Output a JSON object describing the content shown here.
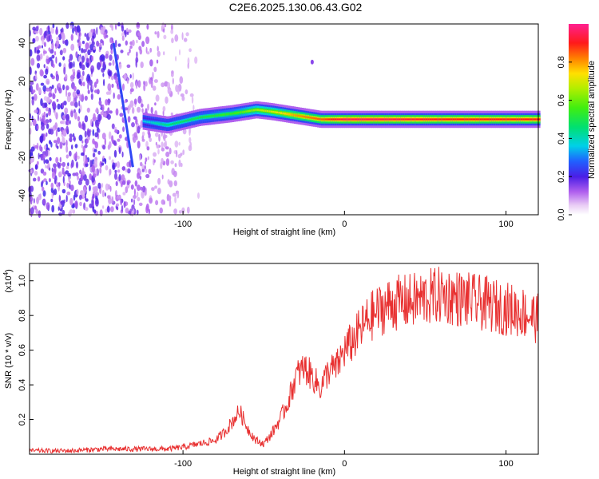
{
  "title": "C2E6.2025.130.06.43.G02",
  "chart_data": [
    {
      "type": "heatmap",
      "xlabel": "Height of straight line (km)",
      "ylabel": "Frequency (Hz)",
      "xlim": [
        -195,
        120
      ],
      "ylim": [
        -50,
        50
      ],
      "xticks": [
        -100,
        0,
        100
      ],
      "yticks": [
        -40,
        -20,
        0,
        20,
        40
      ],
      "colorbar": {
        "label": "Normalized spectral amplitude",
        "range": [
          0,
          1
        ],
        "ticks": [
          0.0,
          0.2,
          0.4,
          0.6,
          0.8
        ]
      },
      "ridge": {
        "description_points_x": [
          -125,
          -110,
          -90,
          -70,
          -55,
          -45,
          -30,
          -15,
          0,
          20,
          60,
          100,
          120
        ],
        "description_points_y": [
          -1,
          -3,
          1,
          3,
          5,
          4,
          2,
          0,
          0,
          0,
          0,
          0,
          0
        ],
        "amplitude": [
          0.35,
          0.45,
          0.5,
          0.55,
          0.65,
          0.7,
          0.8,
          0.85,
          0.95,
          0.95,
          0.9,
          0.9,
          0.9
        ]
      },
      "streak": {
        "x": [
          -143,
          -131
        ],
        "y": [
          40,
          -25
        ]
      },
      "spot": {
        "x": -20,
        "y": 30
      },
      "noise_region_x": [
        -195,
        -90
      ]
    },
    {
      "type": "line",
      "xlabel": "Height of straight line (km)",
      "ylabel": "SNR (10 * v/v)",
      "yscale_label": "(x10",
      "yscale_exp": "4",
      "xlim": [
        -195,
        120
      ],
      "ylim": [
        0,
        1.1
      ],
      "xticks": [
        -100,
        0,
        100
      ],
      "yticks": [
        0.2,
        0.4,
        0.6,
        0.8,
        1.0
      ],
      "series": [
        {
          "color": "#e83030",
          "x": [
            -195,
            -170,
            -150,
            -130,
            -110,
            -100,
            -90,
            -80,
            -75,
            -70,
            -65,
            -60,
            -55,
            -50,
            -45,
            -40,
            -35,
            -30,
            -25,
            -20,
            -15,
            -10,
            -5,
            0,
            5,
            10,
            15,
            20,
            25,
            30,
            40,
            50,
            60,
            70,
            80,
            90,
            100,
            110,
            120
          ],
          "y": [
            0.02,
            0.02,
            0.03,
            0.03,
            0.03,
            0.04,
            0.06,
            0.08,
            0.12,
            0.18,
            0.25,
            0.15,
            0.08,
            0.06,
            0.12,
            0.2,
            0.3,
            0.45,
            0.5,
            0.45,
            0.38,
            0.48,
            0.5,
            0.6,
            0.65,
            0.72,
            0.78,
            0.82,
            0.85,
            0.87,
            0.88,
            0.9,
            0.92,
            0.9,
            0.88,
            0.86,
            0.84,
            0.82,
            0.78
          ]
        }
      ]
    }
  ]
}
